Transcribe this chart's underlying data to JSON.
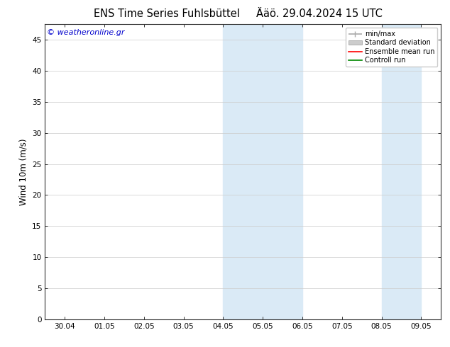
{
  "title_left": "ENS Time Series Fuhlsbüttel",
  "title_right": "Ääö. 29.04.2024 15 UTC",
  "ylabel": "Wind 10m (m/s)",
  "watermark": "© weatheronline.gr",
  "watermark_color": "#0000cc",
  "x_tick_labels": [
    "30.04",
    "01.05",
    "02.05",
    "03.05",
    "04.05",
    "05.05",
    "06.05",
    "07.05",
    "08.05",
    "09.05"
  ],
  "x_tick_positions": [
    0,
    1,
    2,
    3,
    4,
    5,
    6,
    7,
    8,
    9
  ],
  "ylim": [
    0,
    47.5
  ],
  "yticks": [
    0,
    5,
    10,
    15,
    20,
    25,
    30,
    35,
    40,
    45
  ],
  "shaded_bands": [
    {
      "x_start": 4.0,
      "x_end": 5.0,
      "color": "#daeaf6"
    },
    {
      "x_start": 5.0,
      "x_end": 6.0,
      "color": "#daeaf6"
    },
    {
      "x_start": 8.0,
      "x_end": 9.0,
      "color": "#daeaf6"
    }
  ],
  "bg_color": "#ffffff",
  "plot_bg_color": "#ffffff",
  "legend_items": [
    {
      "label": "min/max",
      "color": "#aaaaaa",
      "type": "line_with_caps"
    },
    {
      "label": "Standard deviation",
      "color": "#cccccc",
      "type": "filled_rect"
    },
    {
      "label": "Ensemble mean run",
      "color": "#ff0000",
      "type": "line"
    },
    {
      "label": "Controll run",
      "color": "#008800",
      "type": "line"
    }
  ],
  "grid_color": "#cccccc",
  "axis_color": "#333333",
  "tick_label_fontsize": 7.5,
  "ylabel_fontsize": 8.5,
  "title_fontsize": 10.5,
  "watermark_fontsize": 8
}
